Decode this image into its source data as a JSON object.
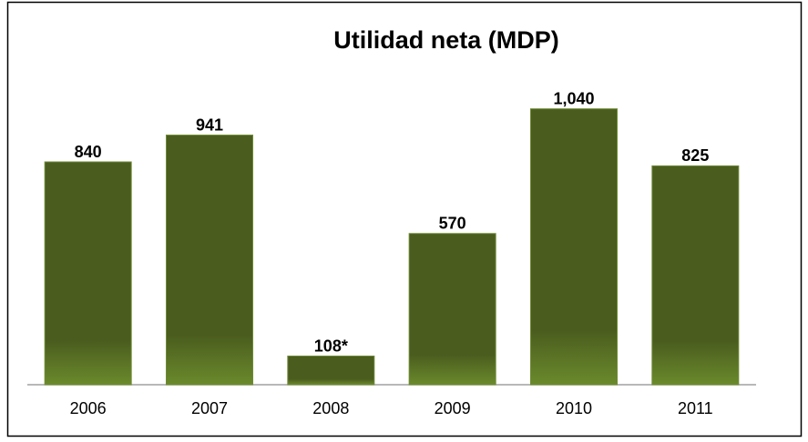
{
  "chart_data": {
    "type": "bar",
    "title": "Utilidad neta (MDP)",
    "categories": [
      "2006",
      "2007",
      "2008",
      "2009",
      "2010",
      "2011"
    ],
    "values": [
      840,
      941,
      108,
      570,
      1040,
      825
    ],
    "value_labels": [
      "840",
      "941",
      "108*",
      "570",
      "1,040",
      "825"
    ],
    "color": "#4a5c1e",
    "ylim": [
      0,
      1200
    ]
  }
}
